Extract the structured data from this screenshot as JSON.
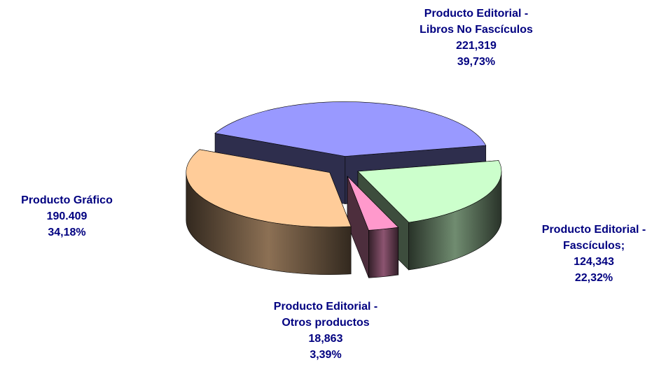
{
  "chart_data": {
    "type": "pie3d",
    "categories": [
      "Producto Editorial - Libros No Fascículos",
      "Producto Editorial - Fascículos;",
      "Producto Editorial - Otros productos",
      "Producto Gráfico"
    ],
    "amounts": [
      221319,
      124343,
      18863,
      190409
    ],
    "amount_labels": [
      "221,319",
      "124,343",
      "18,863",
      "190.409"
    ],
    "values": [
      39.73,
      22.32,
      3.39,
      34.18
    ],
    "value_labels": [
      "39,73%",
      "22,32%",
      "3,39%",
      "34,18%"
    ],
    "colors": [
      "#9999ff",
      "#ccffcc",
      "#ff99cc",
      "#ffcc99"
    ]
  }
}
